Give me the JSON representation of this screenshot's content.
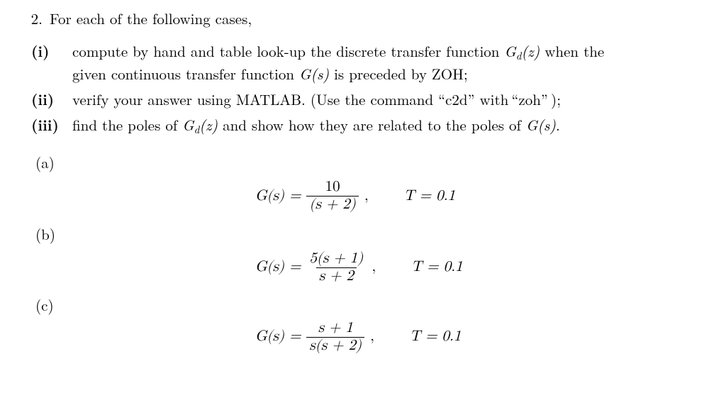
{
  "question": {
    "number": "2.",
    "intro": "For each of the following cases,"
  },
  "parts": {
    "i": {
      "label": "(i)",
      "line1_a": "compute by hand and table look-up the discrete transfer function ",
      "line1_b": " when the",
      "line2": "given continuous transfer function ",
      "line2_b": " is preceded by ZOH;"
    },
    "ii": {
      "label": "(ii)",
      "text_a": " verify your answer using MATLAB. (Use the command “c2d” with “zoh” );"
    },
    "iii": {
      "label": "(iii)",
      "text_a": " find the poles of ",
      "text_b": " and show how they are related to the poles of ",
      "text_c": "."
    }
  },
  "symbols": {
    "Gdz": "G",
    "Gdz_sub": "d",
    "Gdz_arg": "(z)",
    "Gs": "G(s)"
  },
  "cases": {
    "a": {
      "label": "(a)",
      "lhs": "G(s) =",
      "num": "10",
      "den": "(s + 2)",
      "comma": ",",
      "T": "T = 0.1"
    },
    "b": {
      "label": "(b)",
      "lhs": "G(s) =",
      "num": "5(s + 1)",
      "den": "s + 2",
      "comma": ",",
      "T": "T = 0.1"
    },
    "c": {
      "label": "(c)",
      "lhs": "G(s) =",
      "num": "s + 1",
      "den": "s(s + 2)",
      "comma": ",",
      "T": "T = 0.1"
    }
  }
}
